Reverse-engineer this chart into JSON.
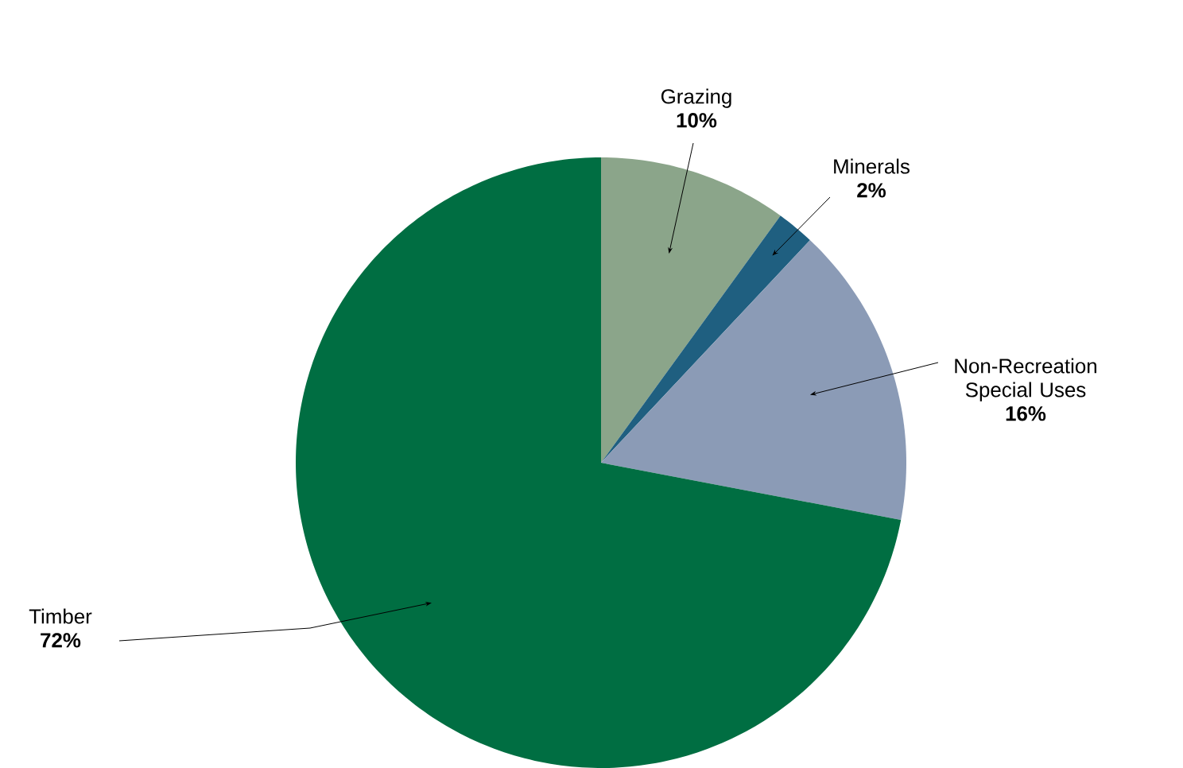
{
  "chart_data": {
    "type": "pie",
    "categories": [
      "Grazing",
      "Minerals",
      "Non-Recreation Special Uses",
      "Timber"
    ],
    "values": [
      10,
      2,
      16,
      72
    ],
    "value_labels": [
      "10%",
      "2%",
      "16%",
      "72%"
    ],
    "colors": [
      "#8ba58a",
      "#1f5f80",
      "#8b9bb6",
      "#006e42"
    ]
  }
}
